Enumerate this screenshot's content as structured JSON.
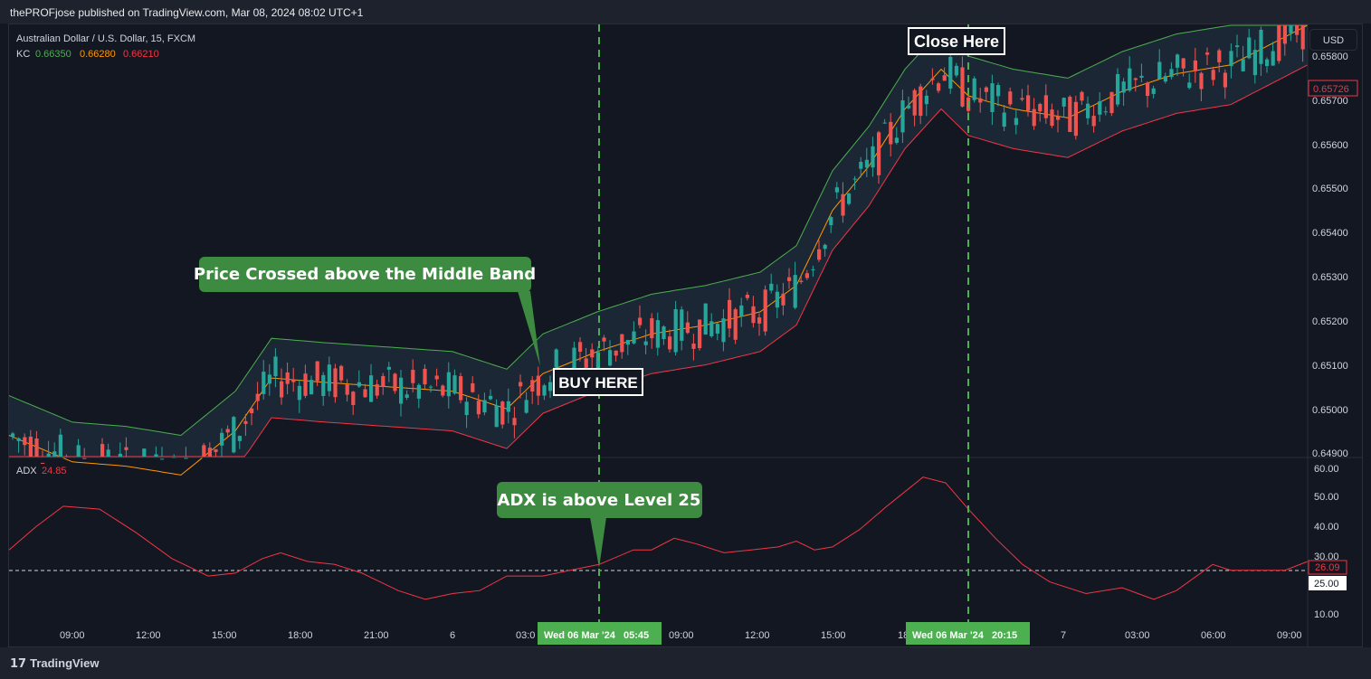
{
  "header": {
    "publisher_line": "thePROFjose published on TradingView.com, Mar 08, 2024 08:02 UTC+1"
  },
  "legend": {
    "symbol": "Australian Dollar / U.S. Dollar, 15, FXCM",
    "kc_label": "KC",
    "kc_upper": "0.66350",
    "kc_middle": "0.66280",
    "kc_lower": "0.66210",
    "adx_label": "ADX",
    "adx_value": "24.85"
  },
  "currency_button": "USD",
  "price_axis": {
    "ticks": [
      "0.65800",
      "0.65700",
      "0.65600",
      "0.65500",
      "0.65400",
      "0.65300",
      "0.65200",
      "0.65100",
      "0.65000",
      "0.64900"
    ],
    "current_price_tag": "0.65726"
  },
  "adx_axis": {
    "ticks": [
      "60.00",
      "50.00",
      "40.00",
      "30.00",
      "10.00"
    ],
    "current_tag": "26.09",
    "level_tag": "25.00"
  },
  "time_axis": {
    "labels": [
      "09:00",
      "12:00",
      "15:00",
      "18:00",
      "21:00",
      "6",
      "03:0",
      "09:00",
      "12:00",
      "15:00",
      "18",
      "7",
      "03:00",
      "06:00",
      "09:00"
    ],
    "buy_marker_label": "Wed 06 Mar '24   05:45",
    "sell_marker_label": "Wed 06 Mar '24   20:15"
  },
  "annotations": {
    "close_here": "Close Here",
    "buy_here": "BUY HERE",
    "price_crossed": "Price Crossed above the Middle Band",
    "adx_above": "ADX is above Level 25"
  },
  "footer": {
    "brand": "TradingView",
    "logo_glyph": "17"
  },
  "colors": {
    "background": "#131722",
    "bull": "#26a69a",
    "bear": "#ef5350",
    "kc_upper": "#4caf50",
    "kc_middle": "#ff9800",
    "kc_lower": "#f23645",
    "kc_fill": "#1e2a3a",
    "marker": "#4caf50",
    "callout": "#3d8b40"
  }
}
